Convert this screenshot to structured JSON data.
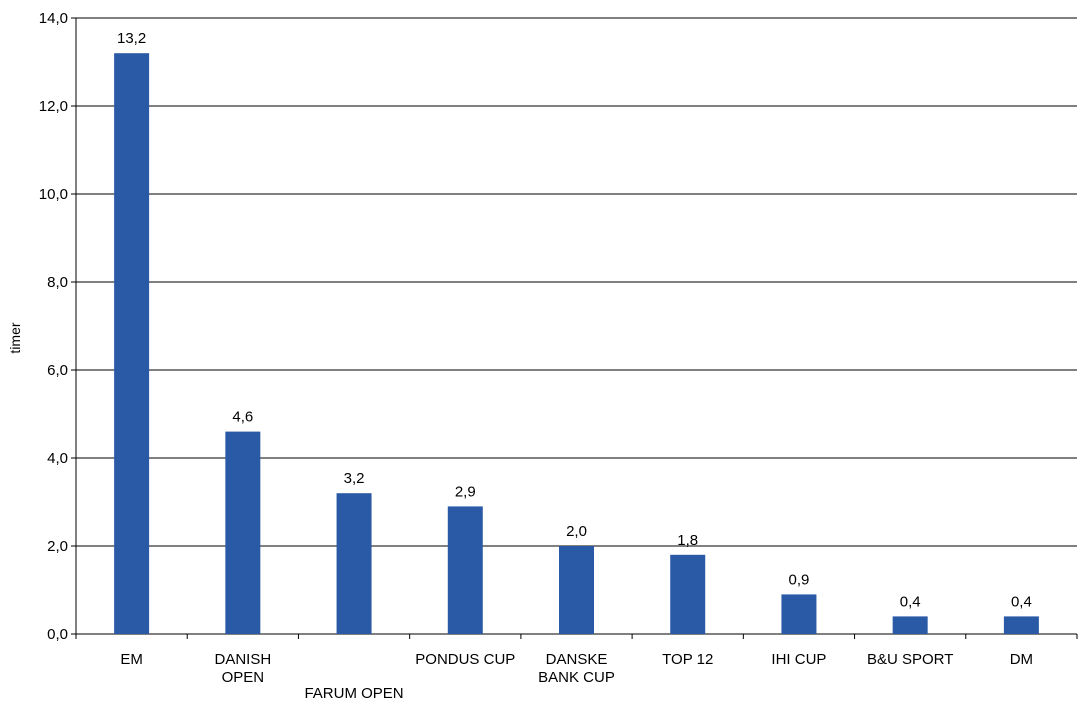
{
  "chart_data": {
    "type": "bar",
    "title": "",
    "xlabel": "",
    "ylabel": "timer",
    "ylim": [
      0,
      14
    ],
    "ytick_values": [
      0,
      2,
      4,
      6,
      8,
      10,
      12,
      14
    ],
    "ytick_labels": [
      "0,0",
      "2,0",
      "4,0",
      "6,0",
      "8,0",
      "10,0",
      "12,0",
      "14,0"
    ],
    "grid": true,
    "legend": "none",
    "bar_color": "#2a5aa6",
    "categories": [
      [
        "EM"
      ],
      [
        "DANISH",
        "OPEN"
      ],
      [
        "FARUM OPEN"
      ],
      [
        "PONDUS CUP"
      ],
      [
        "DANSKE",
        "BANK CUP"
      ],
      [
        "TOP 12"
      ],
      [
        "IHI CUP"
      ],
      [
        "B&U SPORT"
      ],
      [
        "DM"
      ]
    ],
    "values": [
      13.2,
      4.6,
      3.2,
      2.9,
      2.0,
      1.8,
      0.9,
      0.4,
      0.4
    ],
    "data_labels": [
      "13,2",
      "4,6",
      "3,2",
      "2,9",
      "2,0",
      "1,8",
      "0,9",
      "0,4",
      "0,4"
    ]
  }
}
